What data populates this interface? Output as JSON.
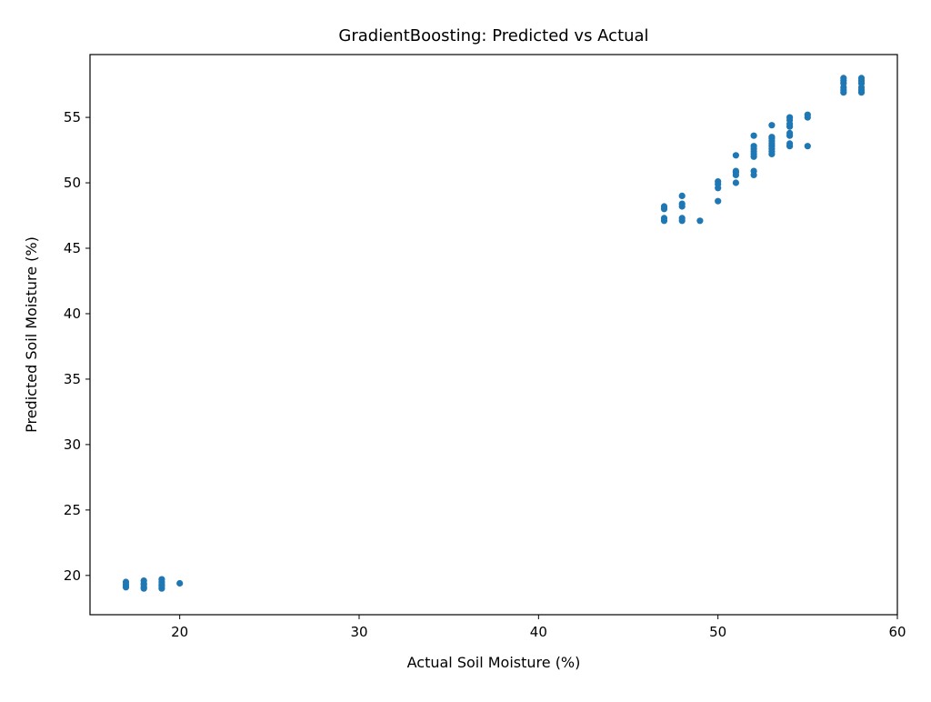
{
  "chart_data": {
    "type": "scatter",
    "title": "GradientBoosting: Predicted vs Actual",
    "xlabel": "Actual Soil Moisture (%)",
    "ylabel": "Predicted Soil Moisture (%)",
    "xlim": [
      15,
      60
    ],
    "ylim": [
      17,
      59.8
    ],
    "xticks": [
      20,
      30,
      40,
      50,
      60
    ],
    "yticks": [
      20,
      25,
      30,
      35,
      40,
      45,
      50,
      55
    ],
    "grid": false,
    "point_color": "#1f77b4",
    "series": [
      {
        "points": [
          [
            17,
            19.1
          ],
          [
            17,
            19.3
          ],
          [
            17,
            19.5
          ],
          [
            18,
            19.0
          ],
          [
            18,
            19.1
          ],
          [
            18,
            19.3
          ],
          [
            18,
            19.4
          ],
          [
            18,
            19.6
          ],
          [
            19,
            19.0
          ],
          [
            19,
            19.2
          ],
          [
            19,
            19.3
          ],
          [
            19,
            19.5
          ],
          [
            19,
            19.7
          ],
          [
            20,
            19.4
          ],
          [
            47,
            47.1
          ],
          [
            47,
            47.3
          ],
          [
            47,
            48.0
          ],
          [
            47,
            48.2
          ],
          [
            48,
            47.1
          ],
          [
            48,
            47.3
          ],
          [
            48,
            48.2
          ],
          [
            48,
            48.4
          ],
          [
            48,
            49.0
          ],
          [
            49,
            47.1
          ],
          [
            50,
            48.6
          ],
          [
            50,
            49.6
          ],
          [
            50,
            49.9
          ],
          [
            50,
            50.1
          ],
          [
            51,
            50.0
          ],
          [
            51,
            50.6
          ],
          [
            51,
            50.8
          ],
          [
            51,
            50.9
          ],
          [
            51,
            52.1
          ],
          [
            52,
            50.6
          ],
          [
            52,
            50.9
          ],
          [
            52,
            52.0
          ],
          [
            52,
            52.2
          ],
          [
            52,
            52.4
          ],
          [
            52,
            52.6
          ],
          [
            52,
            52.8
          ],
          [
            52,
            53.6
          ],
          [
            53,
            52.2
          ],
          [
            53,
            52.4
          ],
          [
            53,
            52.6
          ],
          [
            53,
            52.8
          ],
          [
            53,
            53.0
          ],
          [
            53,
            53.2
          ],
          [
            53,
            53.4
          ],
          [
            53,
            53.5
          ],
          [
            53,
            54.4
          ],
          [
            54,
            52.8
          ],
          [
            54,
            53.0
          ],
          [
            54,
            53.6
          ],
          [
            54,
            53.8
          ],
          [
            54,
            54.3
          ],
          [
            54,
            54.5
          ],
          [
            54,
            54.8
          ],
          [
            54,
            55.0
          ],
          [
            55,
            52.8
          ],
          [
            55,
            55.0
          ],
          [
            55,
            55.2
          ],
          [
            57,
            56.9
          ],
          [
            57,
            57.1
          ],
          [
            57,
            57.3
          ],
          [
            57,
            57.6
          ],
          [
            57,
            57.8
          ],
          [
            57,
            58.0
          ],
          [
            58,
            56.9
          ],
          [
            58,
            57.1
          ],
          [
            58,
            57.3
          ],
          [
            58,
            57.6
          ],
          [
            58,
            57.8
          ],
          [
            58,
            58.0
          ]
        ]
      }
    ]
  }
}
